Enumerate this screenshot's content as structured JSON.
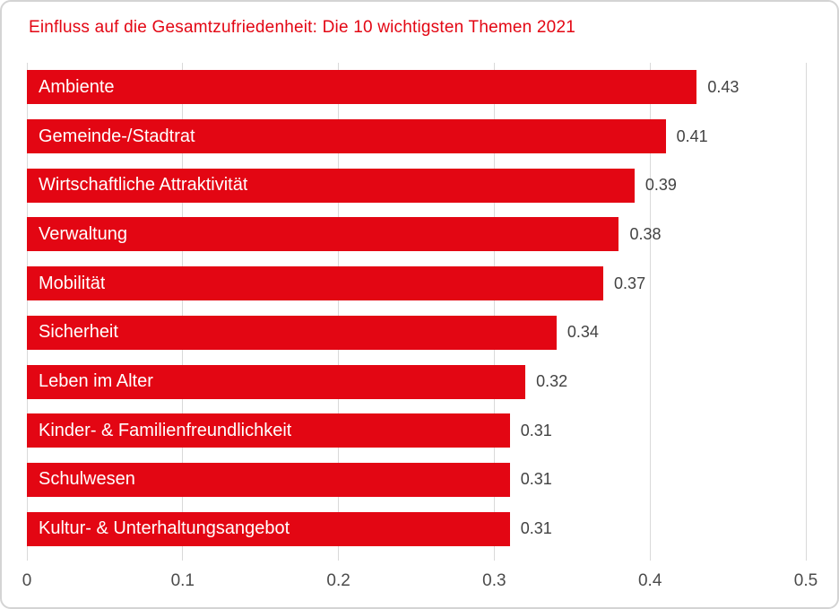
{
  "header": {
    "title": "Einfluss auf die Gesamtzufriedenheit: Die 10 wichtigsten Themen 2021"
  },
  "colors": {
    "bar": "#e30613",
    "title": "#e30613",
    "gridline": "#d9d9d9",
    "value_label": "#424242",
    "axis_label": "#4b4b4b",
    "card_border": "#d4d4d4",
    "bar_label": "#ffffff"
  },
  "chart_data": {
    "type": "bar",
    "orientation": "horizontal",
    "title": "Einfluss auf die Gesamtzufriedenheit: Die 10 wichtigsten Themen 2021",
    "categories": [
      "Ambiente",
      "Gemeinde-/Stadtrat",
      "Wirtschaftliche Attraktivität",
      "Verwaltung",
      "Mobilität",
      "Sicherheit",
      "Leben im Alter",
      "Kinder- & Familienfreundlichkeit",
      "Schulwesen",
      "Kultur- & Unterhaltungsangebot"
    ],
    "values": [
      0.43,
      0.41,
      0.39,
      0.38,
      0.37,
      0.34,
      0.32,
      0.31,
      0.31,
      0.31
    ],
    "value_labels": [
      "0.43",
      "0.41",
      "0.39",
      "0.38",
      "0.37",
      "0.34",
      "0.32",
      "0.31",
      "0.31",
      "0.31"
    ],
    "xlabel": "",
    "ylabel": "",
    "xlim": [
      0,
      0.5
    ],
    "xticks": [
      0,
      0.1,
      0.2,
      0.3,
      0.4,
      0.5
    ],
    "xtick_labels": [
      "0",
      "0.1",
      "0.2",
      "0.3",
      "0.4",
      "0.5"
    ],
    "grid": true,
    "legend": false,
    "labels_inside_bars": true,
    "value_labels_position": "end-of-bar"
  }
}
